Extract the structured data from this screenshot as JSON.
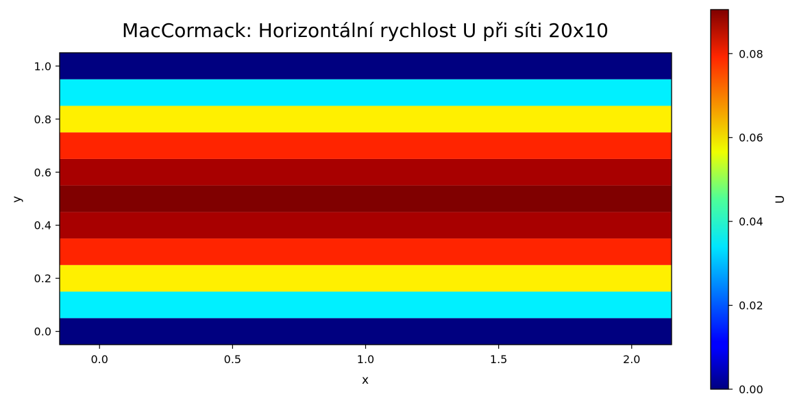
{
  "chart_data": {
    "type": "heatmap",
    "title": "MacCormack: Horizontální rychlost U při síti 20x10",
    "xlabel": "x",
    "ylabel": "y",
    "colorbar_label": "U",
    "colormap": "jet",
    "xlim": [
      -0.15,
      2.15
    ],
    "ylim": [
      -0.05,
      1.05
    ],
    "x_ticks": [
      0.0,
      0.5,
      1.0,
      1.5,
      2.0
    ],
    "x_tick_labels": [
      "0.0",
      "0.5",
      "1.0",
      "1.5",
      "2.0"
    ],
    "y_ticks": [
      0.0,
      0.2,
      0.4,
      0.6,
      0.8,
      1.0
    ],
    "y_tick_labels": [
      "0.0",
      "0.2",
      "0.4",
      "0.6",
      "0.8",
      "1.0"
    ],
    "colorbar_range": [
      0.0,
      0.0905
    ],
    "colorbar_ticks": [
      0.0,
      0.02,
      0.04,
      0.06,
      0.08
    ],
    "colorbar_tick_labels": [
      "0.00",
      "0.02",
      "0.04",
      "0.06",
      "0.08"
    ],
    "x_cells": [
      -0.15,
      2.15
    ],
    "rows": [
      {
        "y": 0.0,
        "value": 0.0
      },
      {
        "y": 0.1,
        "value": 0.0326
      },
      {
        "y": 0.2,
        "value": 0.0579
      },
      {
        "y": 0.3,
        "value": 0.076
      },
      {
        "y": 0.4,
        "value": 0.0869
      },
      {
        "y": 0.5,
        "value": 0.0905
      },
      {
        "y": 0.6,
        "value": 0.0869
      },
      {
        "y": 0.7,
        "value": 0.076
      },
      {
        "y": 0.8,
        "value": 0.0579
      },
      {
        "y": 0.9,
        "value": 0.0326
      },
      {
        "y": 1.0,
        "value": 0.0
      }
    ]
  }
}
